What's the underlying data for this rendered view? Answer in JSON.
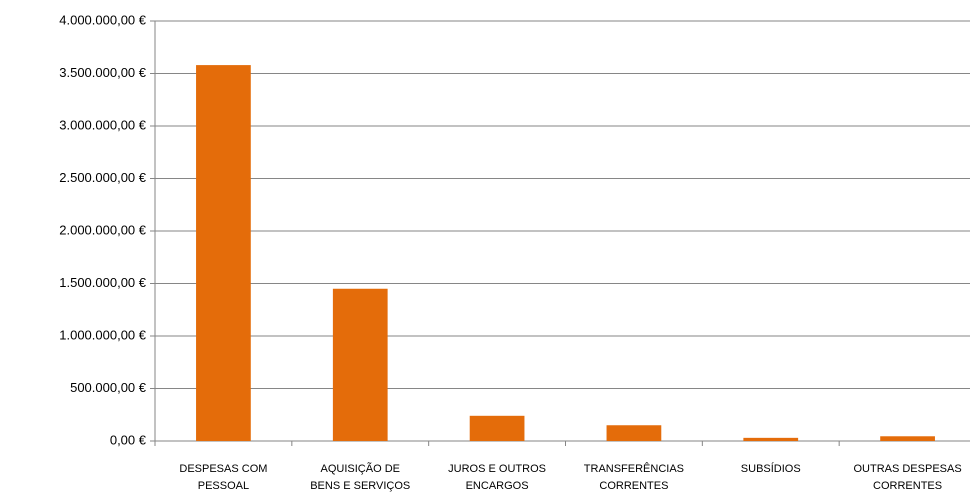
{
  "chart_data": {
    "type": "bar",
    "categories": [
      [
        "DESPESAS COM",
        "PESSOAL"
      ],
      [
        "AQUISIÇÃO DE",
        "BENS E SERVIÇOS"
      ],
      [
        "JUROS E OUTROS",
        "ENCARGOS"
      ],
      [
        "TRANSFERÊNCIAS",
        "CORRENTES"
      ],
      [
        "SUBSÍDIOS"
      ],
      [
        "OUTRAS DESPESAS",
        "CORRENTES"
      ]
    ],
    "values": [
      3580000,
      1450000,
      240000,
      150000,
      30000,
      45000
    ],
    "color": "#e46c0a",
    "ylim": [
      0,
      4000000
    ],
    "yticks": [
      {
        "value": 0,
        "label": "0,00 €"
      },
      {
        "value": 500000,
        "label": "500.000,00 €"
      },
      {
        "value": 1000000,
        "label": "1.000.000,00 €"
      },
      {
        "value": 1500000,
        "label": "1.500.000,00 €"
      },
      {
        "value": 2000000,
        "label": "2.000.000,00 €"
      },
      {
        "value": 2500000,
        "label": "2.500.000,00 €"
      },
      {
        "value": 3000000,
        "label": "3.000.000,00 €"
      },
      {
        "value": 3500000,
        "label": "3.500.000,00 €"
      },
      {
        "value": 4000000,
        "label": "4.000.000,00 €"
      }
    ],
    "grid": true
  }
}
